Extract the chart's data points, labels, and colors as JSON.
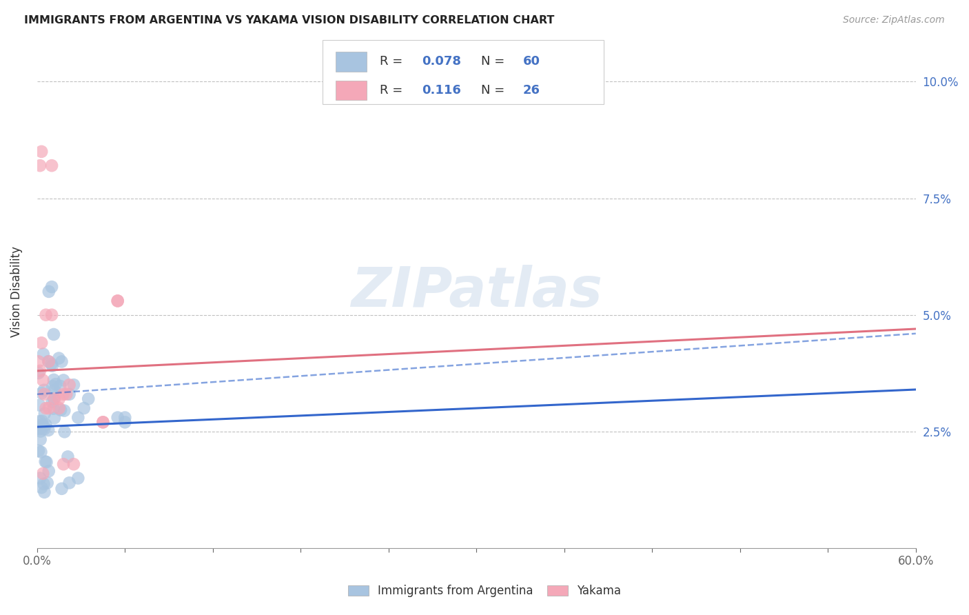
{
  "title": "IMMIGRANTS FROM ARGENTINA VS YAKAMA VISION DISABILITY CORRELATION CHART",
  "source": "Source: ZipAtlas.com",
  "ylabel": "Vision Disability",
  "xlim": [
    0.0,
    0.6
  ],
  "ylim": [
    0.0,
    0.11
  ],
  "yticks": [
    0.025,
    0.05,
    0.075,
    0.1
  ],
  "ytick_labels": [
    "2.5%",
    "5.0%",
    "7.5%",
    "10.0%"
  ],
  "xtick_labels_shown": [
    "0.0%",
    "60.0%"
  ],
  "blue_R": "0.078",
  "blue_N": "60",
  "pink_R": "0.116",
  "pink_N": "26",
  "blue_color": "#a8c4e0",
  "pink_color": "#f4a8b8",
  "blue_line_color": "#3366cc",
  "pink_line_color": "#e07080",
  "blue_line_start_y": 0.026,
  "blue_line_end_y": 0.034,
  "pink_line_start_y": 0.038,
  "pink_line_end_y": 0.047,
  "dashed_line_start_y": 0.033,
  "dashed_line_end_y": 0.046,
  "watermark_text": "ZIPatlas",
  "watermark_color": "#c8d8ea",
  "legend_label_blue": "Immigrants from Argentina",
  "legend_label_pink": "Yakama"
}
